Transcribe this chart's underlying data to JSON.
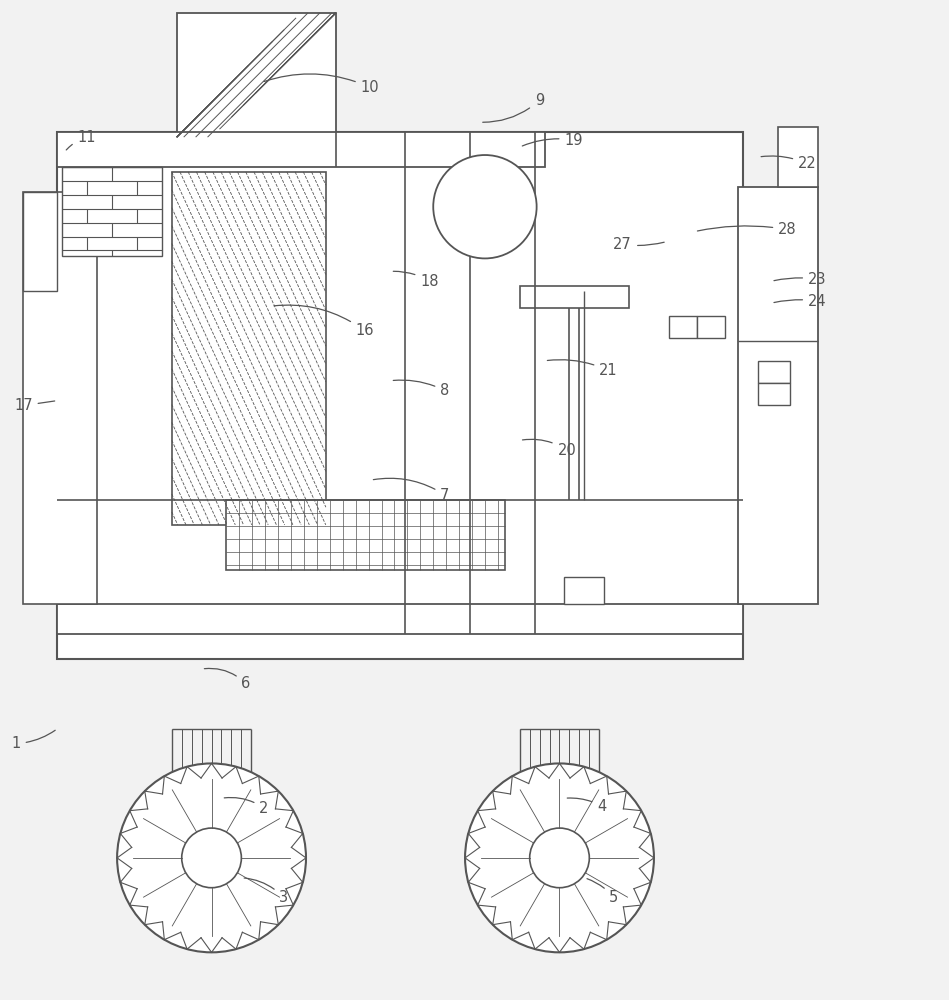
{
  "bg_color": "#f2f2f2",
  "line_color": "#555555",
  "lw": 1.3,
  "fig_width": 9.49,
  "fig_height": 10.0
}
